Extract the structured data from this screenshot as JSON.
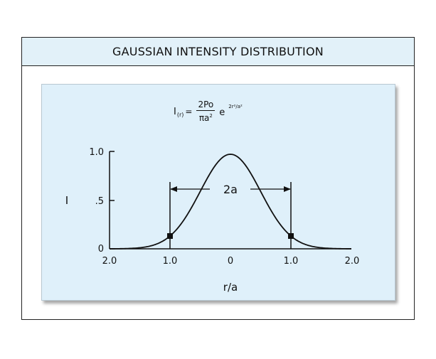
{
  "header": {
    "title": "GAUSSIAN  INTENSITY DISTRIBUTION"
  },
  "formula": {
    "lhs_symbol": "I",
    "lhs_sub": "(r)",
    "equals": "=",
    "numerator": "2Po",
    "denominator": "πa",
    "denominator_exp": "2",
    "exp_base": "e",
    "exponent": "2r²/a²"
  },
  "plot": {
    "y_axis_label": "I",
    "x_axis_label": "r/a",
    "y_ticks": [
      "1.0",
      ".5",
      "0"
    ],
    "x_ticks": [
      "2.0",
      "1.0",
      "0",
      "1.0",
      "2.0"
    ],
    "width_label": "2a"
  },
  "colors": {
    "panel_bg": "#dff0fa",
    "title_bg": "#e2f1f9",
    "ink": "#111111"
  }
}
